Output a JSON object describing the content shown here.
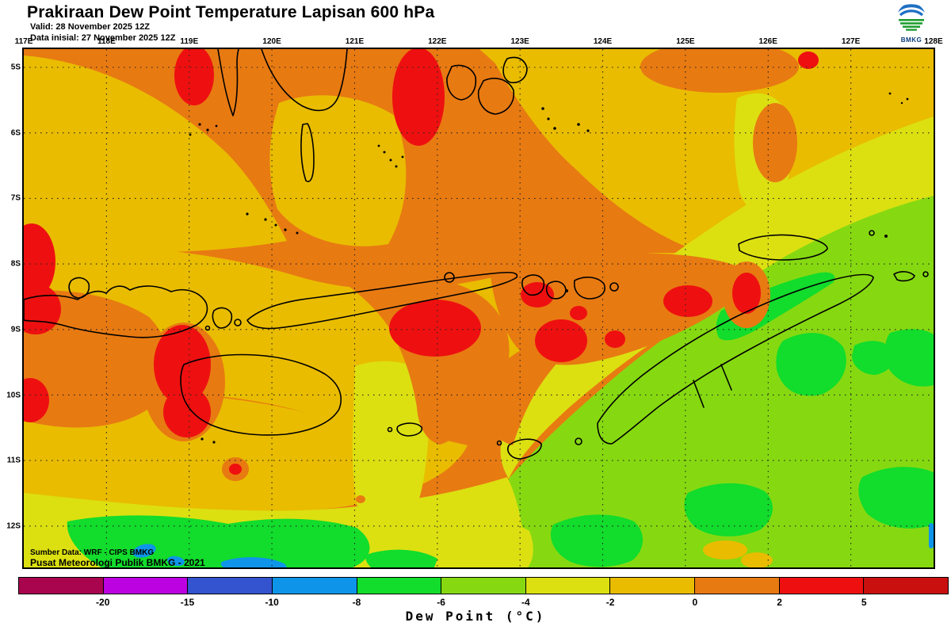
{
  "header": {
    "title": "Prakiraan Dew Point Temperature Lapisan 600 hPa",
    "valid_line": "Valid: 28 November 2025 12Z",
    "init_line": "Data inisial: 27 November 2025 12Z",
    "logo_text": "BMKG"
  },
  "map": {
    "lon_labels": [
      "117E",
      "118E",
      "119E",
      "120E",
      "121E",
      "122E",
      "123E",
      "124E",
      "125E",
      "126E",
      "127E",
      "128E"
    ],
    "lat_labels": [
      "5S",
      "6S",
      "7S",
      "8S",
      "9S",
      "10S",
      "11S",
      "12S"
    ],
    "credit_line1": "Sumber Data: WRF - CIPS BMKG",
    "credit_line2": "Pusat Meteorologi Publik BMKG -  2021"
  },
  "colorbar": {
    "caption": "Dew Point (°C)",
    "boundary_labels": [
      "-20",
      "-15",
      "-10",
      "-8",
      "-6",
      "-4",
      "-2",
      "0",
      "2",
      "5"
    ],
    "segment_colors": [
      "#A9044E",
      "#BC02E0",
      "#3453CE",
      "#0E95E9",
      "#12DC2C",
      "#86D911",
      "#DCE011",
      "#E9BC00",
      "#E87A12",
      "#EE1010",
      "#C9100F"
    ]
  },
  "legend": {
    "title": "Dew Point (°C)",
    "unit": "°C",
    "boundaries": [
      -20,
      -15,
      -10,
      -8,
      -6,
      -4,
      -2,
      0,
      2,
      5
    ]
  },
  "palette": {
    "orange": "#E87A12",
    "gold": "#E9BC00",
    "yellow": "#DCE011",
    "lime": "#86D911",
    "green": "#12DC2C",
    "blue": "#0E95E9",
    "red": "#EE1010",
    "darkred": "#C9100F",
    "magenta": "#BC02E0",
    "darkmagenta": "#A9044E",
    "royalblue": "#3453CE",
    "coast": "#000000",
    "grid": "#222222",
    "logo_blue": "#1D6FC4",
    "logo_green": "#1E9E30"
  }
}
